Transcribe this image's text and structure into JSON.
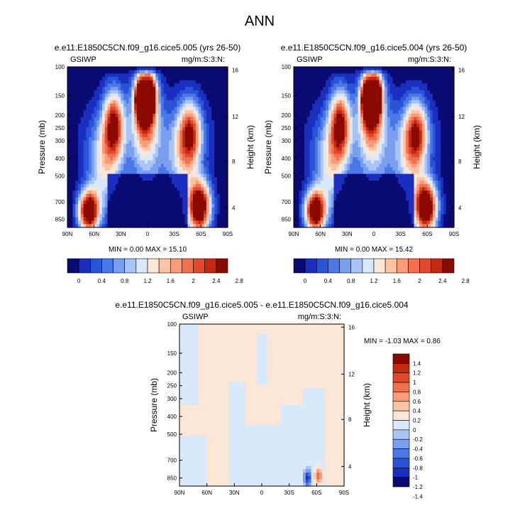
{
  "figure": {
    "title": "ANN"
  },
  "colors": {
    "seq": [
      "#0a0a73",
      "#1a2fc0",
      "#2a54d8",
      "#4a78e6",
      "#7a9ff0",
      "#a9c4f7",
      "#d8e9fb",
      "#fde6d6",
      "#fcc4a4",
      "#f99a78",
      "#f2704f",
      "#e04a2a",
      "#c42a10",
      "#8a0a00"
    ],
    "div": [
      "#0a0a73",
      "#1a2fc0",
      "#2a54d8",
      "#4a78e6",
      "#7a9ff0",
      "#a9c4f7",
      "#d8e9fb",
      "#fde6d6",
      "#fcc4a4",
      "#f99a78",
      "#f2704f",
      "#e04a2a",
      "#c42a10",
      "#8a0a00"
    ]
  },
  "chart_data": [
    {
      "type": "heatmap",
      "title": "e.e11.E1850C5CN.f09_g16.cice5.005 (yrs 26-50)",
      "left_label": "GSIWP",
      "right_label": "mg/m:S:3:N:",
      "ylabel": "Pressure (mb)",
      "y2label": "Height (km)",
      "x_ticks": [
        "90N",
        "60N",
        "30N",
        "0",
        "30S",
        "60S",
        "90S"
      ],
      "y_ticks": [
        "100",
        "150",
        "200",
        "250",
        "300",
        "400",
        "500",
        "700",
        "850"
      ],
      "y2_ticks": [
        "16",
        "12",
        "8",
        "4"
      ],
      "stats": "MIN =  0.00   MAX = 15.10",
      "levels": [
        "0",
        "0.4",
        "0.8",
        "1.2",
        "1.6",
        "2",
        "2.4",
        "2.8"
      ],
      "x_range": [
        -90,
        90
      ],
      "y_range": [
        100,
        900
      ],
      "blobs": [
        {
          "lat": 66,
          "p": 820,
          "amp": 3.4,
          "slat": 8,
          "sp": 70
        },
        {
          "lat": 38,
          "p": 390,
          "amp": 2.4,
          "slat": 8,
          "sp": 120
        },
        {
          "lat": 50,
          "p": 600,
          "amp": 1.2,
          "slat": 12,
          "sp": 160
        },
        {
          "lat": 8,
          "p": 265,
          "amp": 3.0,
          "slat": 4,
          "sp": 60
        },
        {
          "lat": -3,
          "p": 260,
          "amp": 3.0,
          "slat": 4,
          "sp": 60
        },
        {
          "lat": 3,
          "p": 330,
          "amp": 1.8,
          "slat": 9,
          "sp": 130
        },
        {
          "lat": 2,
          "p": 190,
          "amp": 1.0,
          "slat": 9,
          "sp": 60
        },
        {
          "lat": -48,
          "p": 430,
          "amp": 2.0,
          "slat": 9,
          "sp": 110
        },
        {
          "lat": -40,
          "p": 560,
          "amp": 1.0,
          "slat": 12,
          "sp": 150
        },
        {
          "lat": -58,
          "p": 800,
          "amp": 3.4,
          "slat": 9,
          "sp": 90
        }
      ]
    },
    {
      "type": "heatmap",
      "title": "e.e11.E1850C5CN.f09_g16.cice5.004 (yrs 26-50)",
      "left_label": "GSIWP",
      "right_label": "mg/m:S:3:N:",
      "ylabel": "Pressure (mb)",
      "y2label": "Height (km)",
      "x_ticks": [
        "90N",
        "60N",
        "30N",
        "0",
        "30S",
        "60S",
        "90S"
      ],
      "y_ticks": [
        "100",
        "150",
        "200",
        "250",
        "300",
        "400",
        "500",
        "700",
        "850"
      ],
      "y2_ticks": [
        "16",
        "12",
        "8",
        "4"
      ],
      "stats": "MIN =  0.00   MAX = 15.42",
      "levels": [
        "0",
        "0.4",
        "0.8",
        "1.2",
        "1.6",
        "2",
        "2.4",
        "2.8"
      ],
      "x_range": [
        -90,
        90
      ],
      "y_range": [
        100,
        900
      ],
      "blobs": [
        {
          "lat": 66,
          "p": 820,
          "amp": 3.4,
          "slat": 8,
          "sp": 70
        },
        {
          "lat": 38,
          "p": 390,
          "amp": 2.4,
          "slat": 8,
          "sp": 120
        },
        {
          "lat": 50,
          "p": 600,
          "amp": 1.2,
          "slat": 12,
          "sp": 160
        },
        {
          "lat": 8,
          "p": 265,
          "amp": 3.0,
          "slat": 4,
          "sp": 60
        },
        {
          "lat": -3,
          "p": 260,
          "amp": 3.0,
          "slat": 4,
          "sp": 60
        },
        {
          "lat": 3,
          "p": 330,
          "amp": 1.8,
          "slat": 9,
          "sp": 130
        },
        {
          "lat": 2,
          "p": 190,
          "amp": 1.0,
          "slat": 9,
          "sp": 60
        },
        {
          "lat": -48,
          "p": 430,
          "amp": 2.0,
          "slat": 9,
          "sp": 110
        },
        {
          "lat": -40,
          "p": 560,
          "amp": 1.0,
          "slat": 12,
          "sp": 150
        },
        {
          "lat": -58,
          "p": 800,
          "amp": 3.5,
          "slat": 9,
          "sp": 90
        }
      ]
    },
    {
      "type": "heatmap",
      "title": "e.e11.E1850C5CN.f09_g16.cice5.005 - e.e11.E1850C5CN.f09_g16.cice5.004",
      "left_label": "GSIWP",
      "right_label": "mg/m:S:3:N:",
      "ylabel": "Pressure (mb)",
      "y2label": "Height (km)",
      "x_ticks": [
        "90N",
        "60N",
        "30N",
        "0",
        "30S",
        "60S",
        "90S"
      ],
      "y_ticks": [
        "100",
        "150",
        "200",
        "250",
        "300",
        "400",
        "500",
        "700",
        "850"
      ],
      "y2_ticks": [
        "16",
        "12",
        "8",
        "4"
      ],
      "stats": "MIN = -1.03   MAX =  0.86",
      "levels": [
        "1.4",
        "1.2",
        "1",
        "0.8",
        "0.6",
        "0.4",
        "0.2",
        "0",
        "-0.2",
        "-0.4",
        "-0.6",
        "-0.8",
        "-1",
        "-1.2",
        "-1.4"
      ],
      "x_range": [
        -90,
        90
      ],
      "y_range": [
        100,
        900
      ]
    }
  ]
}
